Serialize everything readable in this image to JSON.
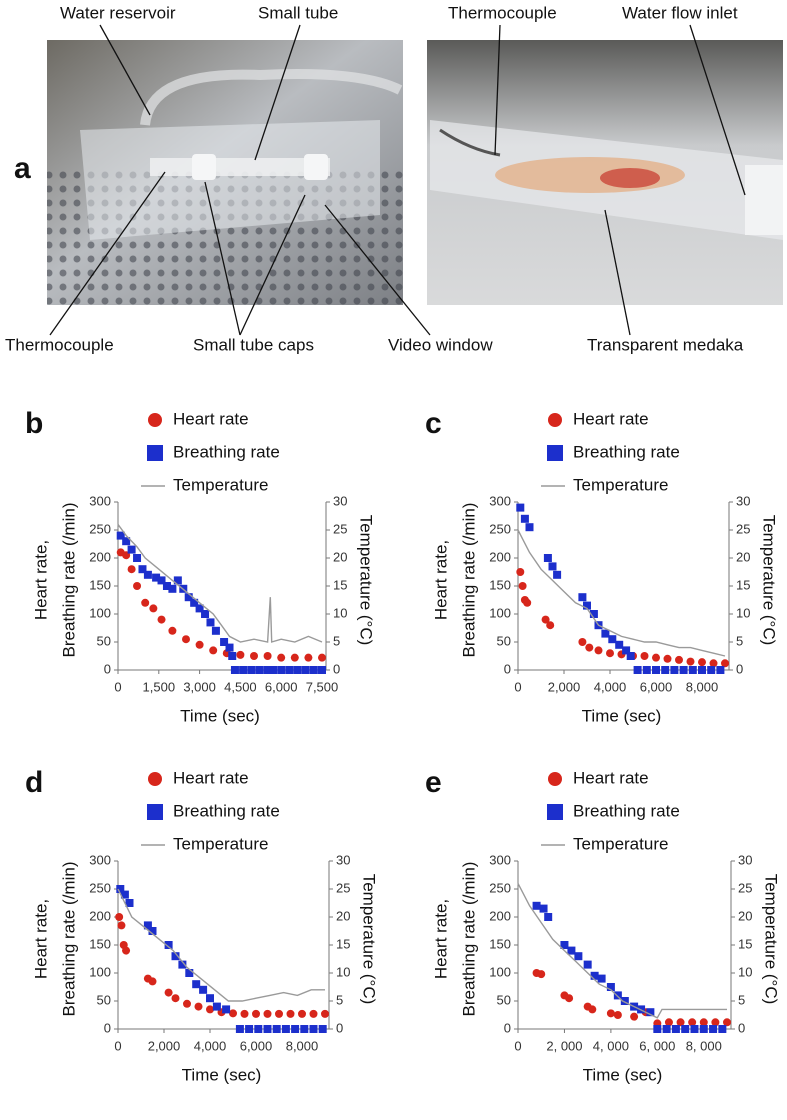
{
  "panel_a": {
    "label": "a",
    "top_labels": [
      "Water reservoir",
      "Small tube",
      "Thermocouple",
      "Water flow inlet"
    ],
    "bottom_labels": [
      "Thermocouple",
      "Small tube caps",
      "Video window",
      "Transparent medaka"
    ]
  },
  "chart_data": [
    {
      "type": "combo",
      "panel": "b",
      "xlabel": "Time (sec)",
      "ylabel": [
        "Heart rate,",
        "Breathing rate (/min)"
      ],
      "y2label": "Temperature (°C)",
      "xlim": [
        0,
        7500
      ],
      "xticks": [
        0,
        {
          "value": 1500,
          "label": "1,500"
        },
        {
          "value": 3000,
          "label": "3,000"
        },
        {
          "value": 4500,
          "label": "4,500"
        },
        {
          "value": 6000,
          "label": "6,000"
        },
        {
          "value": 7500,
          "label": "7,500"
        }
      ],
      "ylim": [
        0,
        300
      ],
      "yticks": [
        0,
        50,
        100,
        150,
        200,
        250,
        300
      ],
      "y2lim": [
        0,
        30
      ],
      "y2ticks": [
        0,
        5,
        10,
        15,
        20,
        25,
        30
      ],
      "series": [
        {
          "name": "Heart rate",
          "type": "scatter",
          "marker": "circle",
          "color": "#d7261b",
          "x": [
            100,
            300,
            500,
            700,
            1000,
            1300,
            1600,
            2000,
            2500,
            3000,
            3500,
            4000,
            4500,
            5000,
            5500,
            6000,
            6500,
            7000,
            7500
          ],
          "values": [
            210,
            205,
            180,
            150,
            120,
            110,
            90,
            70,
            55,
            45,
            35,
            30,
            27,
            25,
            25,
            22,
            22,
            22,
            22
          ]
        },
        {
          "name": "Breathing rate",
          "type": "scatter",
          "marker": "square",
          "color": "#1c2fcc",
          "x": [
            100,
            300,
            500,
            700,
            900,
            1100,
            1400,
            1600,
            1800,
            2000,
            2200,
            2400,
            2600,
            2800,
            3000,
            3200,
            3400,
            3600,
            3900,
            4100,
            4200,
            4300,
            4600,
            4900,
            5200,
            5500,
            5700,
            6000,
            6300,
            6600,
            6900,
            7200,
            7500
          ],
          "values": [
            240,
            230,
            215,
            200,
            180,
            170,
            165,
            160,
            150,
            145,
            160,
            145,
            130,
            120,
            110,
            100,
            85,
            70,
            50,
            40,
            25,
            0,
            0,
            0,
            0,
            0,
            0,
            0,
            0,
            0,
            0,
            0,
            0
          ]
        },
        {
          "name": "Temperature",
          "type": "line",
          "axis": "y2",
          "color": "#9a9a9a",
          "x": [
            0,
            300,
            700,
            1000,
            1500,
            2000,
            2500,
            3000,
            3500,
            3800,
            4100,
            4500,
            5000,
            5500,
            5600,
            5650,
            6000,
            6500,
            7000,
            7500
          ],
          "values": [
            26,
            24,
            22,
            20,
            18,
            16,
            14,
            12,
            10,
            8,
            6,
            5,
            5.5,
            5,
            13,
            5,
            5.5,
            5,
            6,
            5
          ]
        }
      ]
    },
    {
      "type": "combo",
      "panel": "c",
      "xlabel": "Time (sec)",
      "ylabel": [
        "Heart rate,",
        "Breathing rate (/min)"
      ],
      "y2label": "Temperature (°C)",
      "xlim": [
        0,
        9000
      ],
      "xticks": [
        0,
        {
          "value": 2000,
          "label": "2,000"
        },
        {
          "value": 4000,
          "label": "4,000"
        },
        {
          "value": 6000,
          "label": "6,000"
        },
        {
          "value": 8000,
          "label": "8,000"
        }
      ],
      "ylim": [
        0,
        300
      ],
      "yticks": [
        0,
        50,
        100,
        150,
        200,
        250,
        300
      ],
      "y2lim": [
        0,
        30
      ],
      "y2ticks": [
        0,
        5,
        10,
        15,
        20,
        25,
        30
      ],
      "series": [
        {
          "name": "Heart rate",
          "type": "scatter",
          "marker": "circle",
          "color": "#d7261b",
          "x": [
            100,
            200,
            300,
            400,
            1200,
            1400,
            2800,
            3100,
            3500,
            4000,
            4500,
            5000,
            5500,
            6000,
            6500,
            7000,
            7500,
            8000,
            8500,
            9000
          ],
          "values": [
            175,
            150,
            125,
            120,
            90,
            80,
            50,
            40,
            35,
            30,
            28,
            25,
            25,
            22,
            20,
            18,
            15,
            14,
            12,
            12
          ]
        },
        {
          "name": "Breathing rate",
          "type": "scatter",
          "marker": "square",
          "color": "#1c2fcc",
          "x": [
            100,
            300,
            500,
            1300,
            1500,
            1700,
            2800,
            3000,
            3300,
            3500,
            3800,
            4100,
            4400,
            4700,
            4900,
            5200,
            5600,
            6000,
            6400,
            6800,
            7200,
            7600,
            8000,
            8400,
            8800
          ],
          "values": [
            290,
            270,
            255,
            200,
            185,
            170,
            130,
            115,
            100,
            80,
            65,
            55,
            45,
            35,
            25,
            0,
            0,
            0,
            0,
            0,
            0,
            0,
            0,
            0,
            0
          ]
        },
        {
          "name": "Temperature",
          "type": "line",
          "axis": "y2",
          "color": "#9a9a9a",
          "x": [
            0,
            500,
            1000,
            1500,
            2000,
            2500,
            3000,
            3500,
            4000,
            4500,
            5000,
            5500,
            6000,
            6500,
            7000,
            7500,
            8000,
            8500,
            9000
          ],
          "values": [
            25,
            21,
            18,
            16,
            14,
            12,
            11,
            8,
            7,
            6,
            5.5,
            5,
            5,
            4.5,
            4,
            4,
            3.5,
            3,
            2.5
          ]
        }
      ]
    },
    {
      "type": "combo",
      "panel": "d",
      "xlabel": "Time (sec)",
      "ylabel": [
        "Heart rate,",
        "Breathing rate (/min)"
      ],
      "y2label": "Temperature (°C)",
      "xlim": [
        0,
        9000
      ],
      "xticks": [
        0,
        {
          "value": 2000,
          "label": "2,000"
        },
        {
          "value": 4000,
          "label": "4,000"
        },
        {
          "value": 6000,
          "label": "6,000"
        },
        {
          "value": 8000,
          "label": "8,000"
        }
      ],
      "ylim": [
        0,
        300
      ],
      "yticks": [
        0,
        50,
        100,
        150,
        200,
        250,
        300
      ],
      "y2lim": [
        0,
        30
      ],
      "y2ticks": [
        0,
        5,
        10,
        15,
        20,
        25,
        30
      ],
      "series": [
        {
          "name": "Heart rate",
          "type": "scatter",
          "marker": "circle",
          "color": "#d7261b",
          "x": [
            50,
            150,
            250,
            350,
            1300,
            1500,
            2200,
            2500,
            3000,
            3500,
            4000,
            4500,
            5000,
            5500,
            6000,
            6500,
            7000,
            7500,
            8000,
            8500,
            9000
          ],
          "values": [
            200,
            185,
            150,
            140,
            90,
            85,
            65,
            55,
            45,
            40,
            35,
            30,
            28,
            27,
            27,
            27,
            27,
            27,
            27,
            27,
            27
          ]
        },
        {
          "name": "Breathing rate",
          "type": "scatter",
          "marker": "square",
          "color": "#1c2fcc",
          "x": [
            100,
            300,
            500,
            1300,
            1500,
            2200,
            2500,
            2800,
            3100,
            3400,
            3700,
            4000,
            4300,
            4700,
            5300,
            5700,
            6100,
            6500,
            6900,
            7300,
            7700,
            8100,
            8500,
            8900
          ],
          "values": [
            250,
            240,
            225,
            185,
            175,
            150,
            130,
            115,
            100,
            80,
            70,
            55,
            40,
            35,
            0,
            0,
            0,
            0,
            0,
            0,
            0,
            0,
            0,
            0
          ]
        },
        {
          "name": "Temperature",
          "type": "line",
          "axis": "y2",
          "color": "#9a9a9a",
          "x": [
            0,
            600,
            1200,
            1800,
            2400,
            3000,
            3600,
            4200,
            4800,
            5400,
            6000,
            6600,
            7200,
            7800,
            8400,
            9000
          ],
          "values": [
            25,
            20,
            18,
            16,
            14,
            11,
            9,
            7,
            5,
            5,
            5.5,
            6,
            6.5,
            6,
            7,
            7
          ]
        }
      ]
    },
    {
      "type": "combo",
      "panel": "e",
      "xlabel": "Time (sec)",
      "ylabel": [
        "Heart rate,",
        "Breathing rate (/min)"
      ],
      "y2label": "Temperature (°C)",
      "xlim": [
        0,
        9000
      ],
      "xticks": [
        0,
        {
          "value": 2000,
          "label": "2, 000"
        },
        {
          "value": 4000,
          "label": "4, 000"
        },
        {
          "value": 6000,
          "label": "6, 000"
        },
        {
          "value": 8000,
          "label": "8, 000"
        }
      ],
      "ylim": [
        0,
        300
      ],
      "yticks": [
        0,
        50,
        100,
        150,
        200,
        250,
        300
      ],
      "y2lim": [
        0,
        30
      ],
      "y2ticks": [
        0,
        5,
        10,
        15,
        20,
        25,
        30
      ],
      "series": [
        {
          "name": "Heart rate",
          "type": "scatter",
          "marker": "circle",
          "color": "#d7261b",
          "x": [
            800,
            1000,
            2000,
            2200,
            3000,
            3200,
            4000,
            4300,
            5000,
            5500,
            6000,
            6500,
            7000,
            7500,
            8000,
            8500,
            9000
          ],
          "values": [
            100,
            98,
            60,
            55,
            40,
            35,
            28,
            25,
            22,
            30,
            10,
            12,
            12,
            12,
            12,
            12,
            12
          ]
        },
        {
          "name": "Breathing rate",
          "type": "scatter",
          "marker": "square",
          "color": "#1c2fcc",
          "x": [
            800,
            1100,
            1300,
            2000,
            2300,
            2600,
            3000,
            3300,
            3600,
            4000,
            4300,
            4600,
            5000,
            5300,
            5700,
            6000,
            6400,
            6800,
            7200,
            7600,
            8000,
            8400,
            8800
          ],
          "values": [
            220,
            215,
            200,
            150,
            140,
            130,
            115,
            95,
            90,
            75,
            60,
            50,
            40,
            35,
            30,
            0,
            0,
            0,
            0,
            0,
            0,
            0,
            0
          ]
        },
        {
          "name": "Temperature",
          "type": "line",
          "axis": "y2",
          "color": "#9a9a9a",
          "x": [
            0,
            500,
            1000,
            1500,
            2000,
            2500,
            3000,
            3500,
            4000,
            4500,
            5000,
            5500,
            6000,
            6200,
            7000,
            8000,
            9000
          ],
          "values": [
            26,
            22,
            19,
            16,
            14,
            12,
            10,
            8,
            7,
            5,
            4,
            3,
            2,
            3.5,
            3.5,
            3.5,
            3.5
          ]
        }
      ]
    }
  ]
}
